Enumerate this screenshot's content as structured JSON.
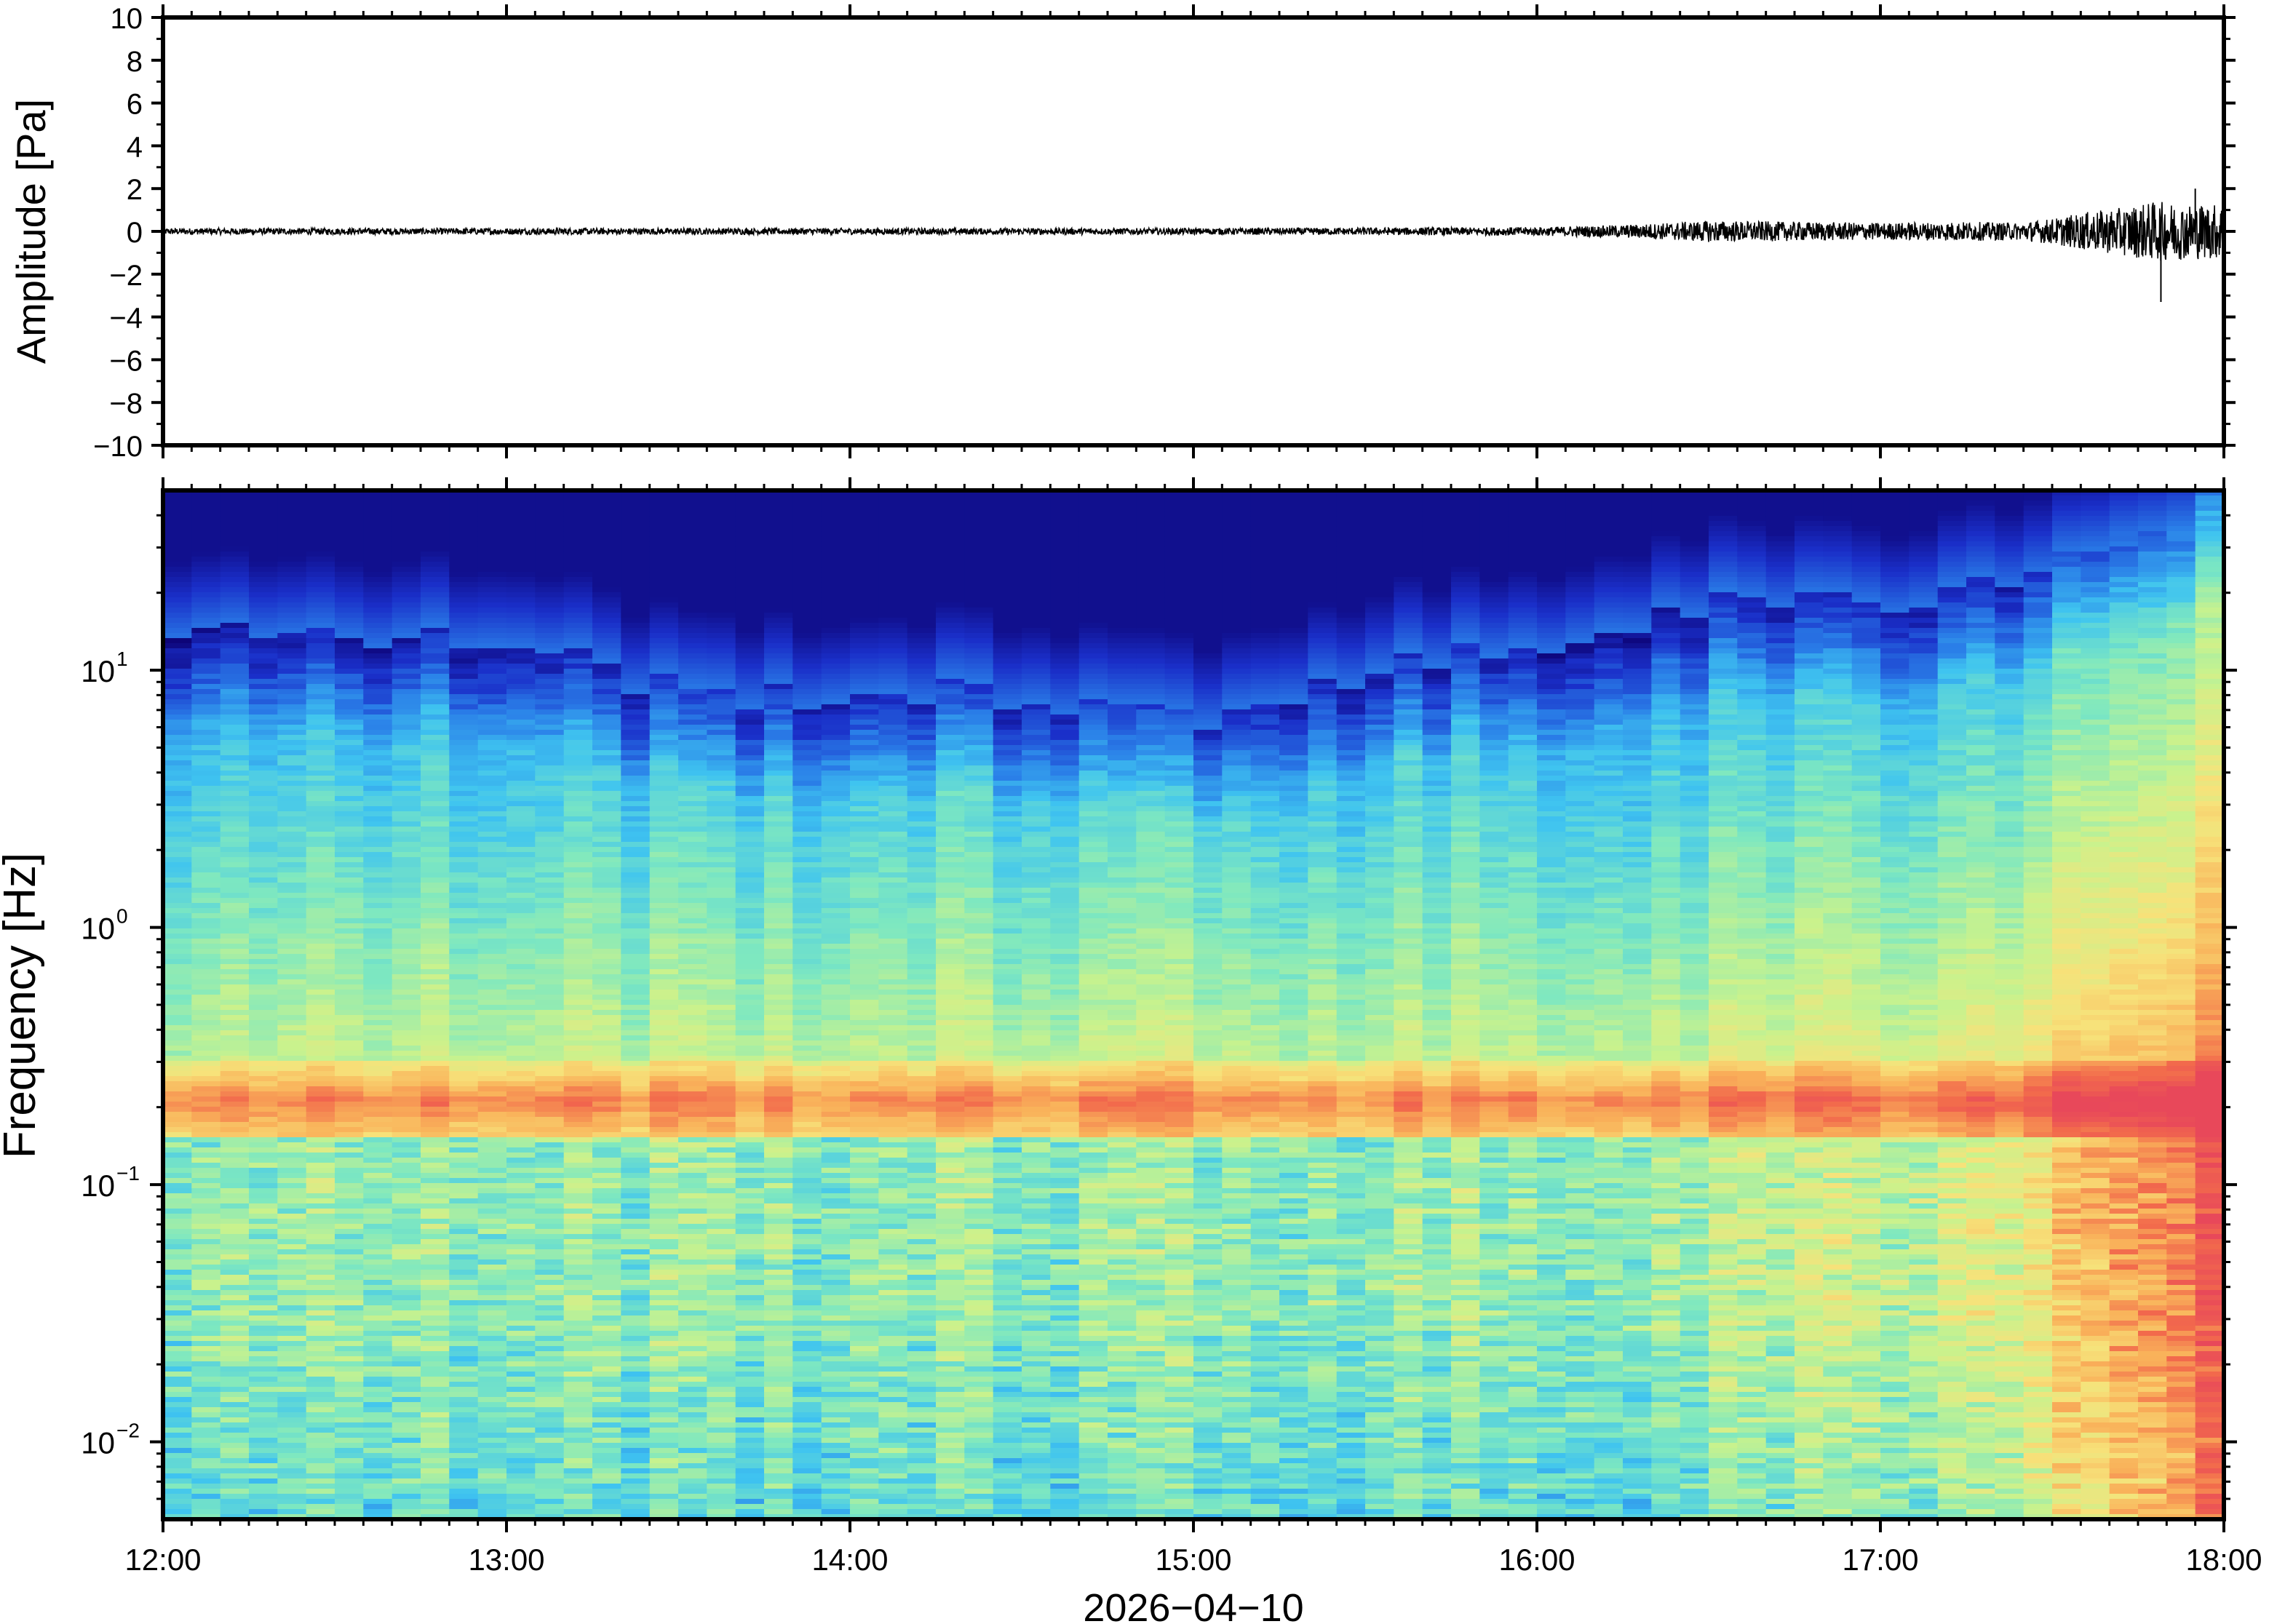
{
  "chart_data": [
    {
      "type": "line",
      "panel": "waveform",
      "ylabel": "Amplitude [Pa]",
      "ylim": [
        -10,
        10
      ],
      "yticks": [
        10,
        8,
        6,
        4,
        2,
        0,
        -2,
        -4,
        -6,
        -8,
        -10
      ],
      "ytick_labels": [
        "10",
        "8",
        "6",
        "4",
        "2",
        "0",
        "−2",
        "−4",
        "−6",
        "−8",
        "−10"
      ],
      "xlim": [
        "12:00",
        "18:00"
      ],
      "series": [
        {
          "color": "#000000",
          "x_hours": [
            12.0,
            12.5,
            13.0,
            13.5,
            14.0,
            14.5,
            15.0,
            15.5,
            16.0,
            16.25,
            16.5,
            16.75,
            17.0,
            17.25,
            17.4,
            17.5,
            17.6,
            17.7,
            17.8,
            17.9,
            18.0
          ],
          "envelope_pa": [
            0.15,
            0.15,
            0.15,
            0.15,
            0.15,
            0.15,
            0.15,
            0.17,
            0.2,
            0.3,
            0.5,
            0.45,
            0.4,
            0.45,
            0.4,
            0.6,
            0.9,
            1.1,
            1.4,
            1.3,
            1.3
          ],
          "peaks": [
            {
              "x": "17:49",
              "min": -3.3
            },
            {
              "x": "17:55",
              "max": 2.0
            }
          ]
        }
      ]
    },
    {
      "type": "heatmap",
      "panel": "spectrogram",
      "ylabel": "Frequency [Hz]",
      "yscale": "log",
      "ylim": [
        0.005,
        50
      ],
      "yticks": [
        0.01,
        0.1,
        1,
        10
      ],
      "ytick_base": "10",
      "ytick_exponents": [
        "−2",
        "−1",
        "0",
        "1"
      ],
      "xlim": [
        "12:00",
        "18:00"
      ],
      "xticks": [
        "12:00",
        "13:00",
        "14:00",
        "15:00",
        "16:00",
        "17:00",
        "18:00"
      ],
      "xlabel": "2026−04−10",
      "colormap": [
        "#0d0478",
        "#1a2fc9",
        "#2a7fe8",
        "#3fc4f0",
        "#7ee8c0",
        "#c9f28d",
        "#f7e27a",
        "#f9b25a",
        "#f26a4c",
        "#e8485a"
      ],
      "time_bins": 72,
      "profile": {
        "x_hours": [
          12.0,
          12.5,
          13.0,
          13.5,
          14.0,
          14.5,
          15.0,
          15.5,
          16.0,
          16.5,
          17.0,
          17.5,
          17.75,
          18.0
        ],
        "upper_edge_hz": [
          15,
          13,
          13,
          8,
          8,
          8,
          6,
          10,
          12,
          18,
          18,
          25,
          35,
          45
        ],
        "microbarom_band_hz": [
          0.15,
          0.3
        ]
      }
    }
  ]
}
